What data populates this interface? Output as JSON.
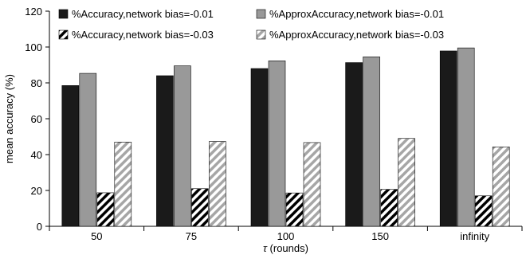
{
  "chart_data": {
    "type": "bar",
    "categories": [
      "50",
      "75",
      "100",
      "150",
      "infinity"
    ],
    "series": [
      {
        "name": "%Accuracy,network bias=-0.01",
        "values": [
          78.5,
          84,
          88,
          91.3,
          97.8
        ],
        "color": "#1a1a1a",
        "pattern": "solid"
      },
      {
        "name": "%ApproxAccuracy,network bias=-0.01",
        "values": [
          85.3,
          89.5,
          92.3,
          94.5,
          99.5
        ],
        "color": "#999999",
        "pattern": "solid"
      },
      {
        "name": "%Accuracy,network bias=-0.03",
        "values": [
          18.7,
          21,
          18.6,
          20.6,
          17
        ],
        "color": "#000000",
        "pattern": "dark-diagonal"
      },
      {
        "name": "%ApproxAccuracy,network bias=-0.03",
        "values": [
          47,
          47.3,
          46.7,
          49,
          44.3
        ],
        "color": "#a6a6a6",
        "pattern": "light-diagonal"
      }
    ],
    "xlabel": "τ (rounds)",
    "xlabel_symbol": "τ",
    "xlabel_rest": " (rounds)",
    "ylabel": "mean accuracy (%)",
    "ylim": [
      0,
      120
    ],
    "yticks": [
      "0",
      "20",
      "40",
      "60",
      "80",
      "100",
      "120"
    ],
    "grid": false,
    "legend_position": "top"
  }
}
